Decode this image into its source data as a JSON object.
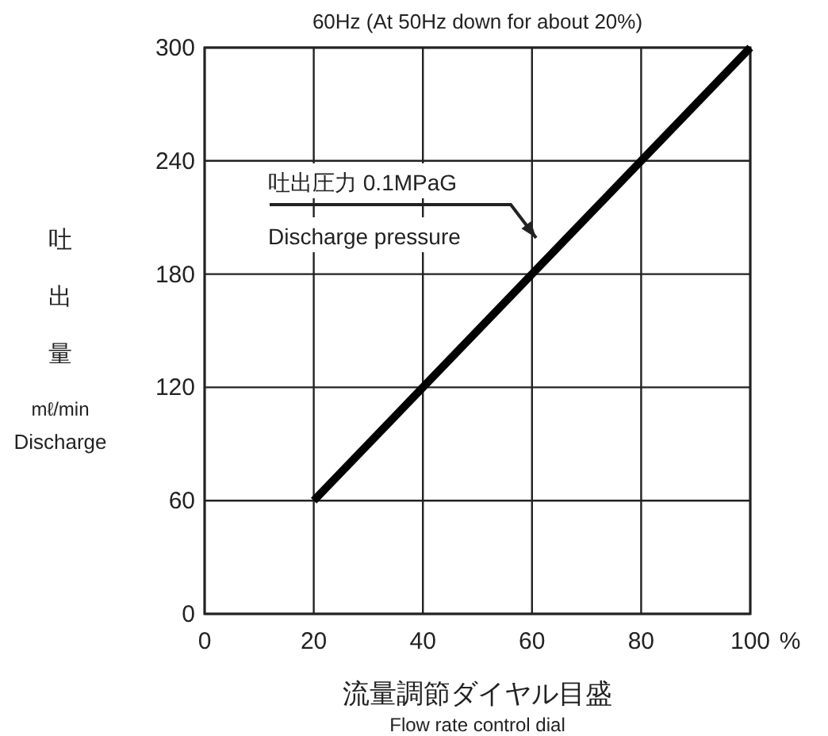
{
  "chart_data": {
    "type": "line",
    "title": "60Hz (At 50Hz down for about 20%)",
    "xlabel": "流量調節ダイヤル目盛",
    "ylabel": "吐出量",
    "x": [
      20,
      100
    ],
    "series": [
      {
        "color": "#000000",
        "values": [
          60,
          300
        ]
      }
    ],
    "xlim": [
      0,
      100
    ],
    "ylim": [
      0,
      300
    ],
    "xticks": [
      0,
      20,
      40,
      60,
      80,
      100
    ],
    "yticks": [
      0,
      60,
      120,
      180,
      240,
      300
    ],
    "grid": true,
    "marker": "none",
    "line_style": "solid",
    "annotations": [
      "吐出圧力 0.1MPaG",
      "Discharge pressure",
      "mℓ/min",
      "Discharge",
      "%",
      "Flow rate control dial"
    ]
  }
}
